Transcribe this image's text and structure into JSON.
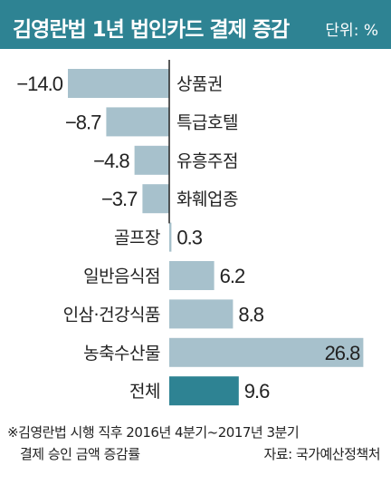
{
  "header": {
    "title": "김영란법 1년 법인카드 결제 증감",
    "unit": "단위: %"
  },
  "chart_data": {
    "type": "bar",
    "orientation": "horizontal",
    "categories": [
      "상품권",
      "특급호텔",
      "유흥주점",
      "화훼업종",
      "골프장",
      "일반음식점",
      "인삼·건강식품",
      "농축수산물",
      "전체"
    ],
    "values": [
      -14.0,
      -8.7,
      -4.8,
      -3.7,
      0.3,
      6.2,
      8.8,
      26.8,
      9.6
    ],
    "value_labels": [
      "−14.0",
      "−8.7",
      "−4.8",
      "−3.7",
      "0.3",
      "6.2",
      "8.8",
      "26.8",
      "9.6"
    ],
    "highlight_index": 8,
    "colors": {
      "bar": "#a7c1cc",
      "highlight": "#2e8393",
      "axis": "#222222",
      "header": "#2e8393"
    }
  },
  "footnote": {
    "line1": "※김영란법 시행 직후 2016년 4분기~2017년 3분기",
    "line2": "결제 승인 금액 증감률",
    "source": "자료: 국가예산정책처"
  }
}
